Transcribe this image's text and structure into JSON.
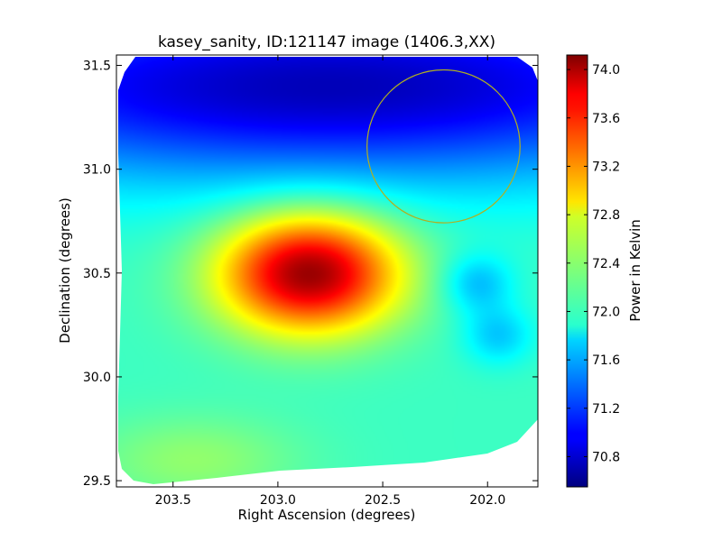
{
  "chart_data": {
    "type": "heatmap",
    "title": "kasey_sanity, ID:121147 image (1406.3,XX)",
    "xlabel": "Right Ascension (degrees)",
    "ylabel": "Declination (degrees)",
    "colorbar_label": "Power in Kelvin",
    "xlim": [
      203.77,
      201.76
    ],
    "ylim": [
      29.47,
      31.55
    ],
    "x_ticks": [
      203.5,
      203.0,
      202.5,
      202.0
    ],
    "x_tick_labels": [
      "203.5",
      "203.0",
      "202.5",
      "202.0"
    ],
    "y_ticks": [
      29.5,
      30.0,
      30.5,
      31.0,
      31.5
    ],
    "y_tick_labels": [
      "29.5",
      "30.0",
      "30.5",
      "31.0",
      "31.5"
    ],
    "colorbar_range": [
      70.55,
      74.12
    ],
    "colorbar_ticks": [
      70.8,
      71.2,
      71.6,
      72.0,
      72.4,
      72.8,
      73.2,
      73.6,
      74.0
    ],
    "colorbar_tick_labels": [
      "70.8",
      "71.2",
      "71.6",
      "72.0",
      "72.4",
      "72.8",
      "73.2",
      "73.6",
      "74.0"
    ],
    "colormap": "jet",
    "background_level": 72.1,
    "features": [
      {
        "name": "hot-peak",
        "ra": 202.85,
        "dec": 30.5,
        "sigma_ra": 0.3,
        "sigma_dec": 0.2,
        "amplitude": 1.95
      },
      {
        "name": "cool-band-north",
        "ra": 202.75,
        "dec": 31.4,
        "sigma_ra": 1.6,
        "sigma_dec": 0.32,
        "amplitude": -1.35
      },
      {
        "name": "cool-patch-east",
        "ra": 202.05,
        "dec": 30.45,
        "sigma_ra": 0.12,
        "sigma_dec": 0.1,
        "amplitude": -0.45
      },
      {
        "name": "cool-patch-east-low",
        "ra": 201.95,
        "dec": 30.2,
        "sigma_ra": 0.12,
        "sigma_dec": 0.1,
        "amplitude": -0.4
      },
      {
        "name": "warm-patch-south",
        "ra": 203.4,
        "dec": 29.6,
        "sigma_ra": 0.35,
        "sigma_dec": 0.15,
        "amplitude": 0.3
      }
    ],
    "annotation_circle": {
      "ra": 202.21,
      "dec": 31.11,
      "radius_deg": 0.365,
      "color": "#b0b020"
    }
  }
}
